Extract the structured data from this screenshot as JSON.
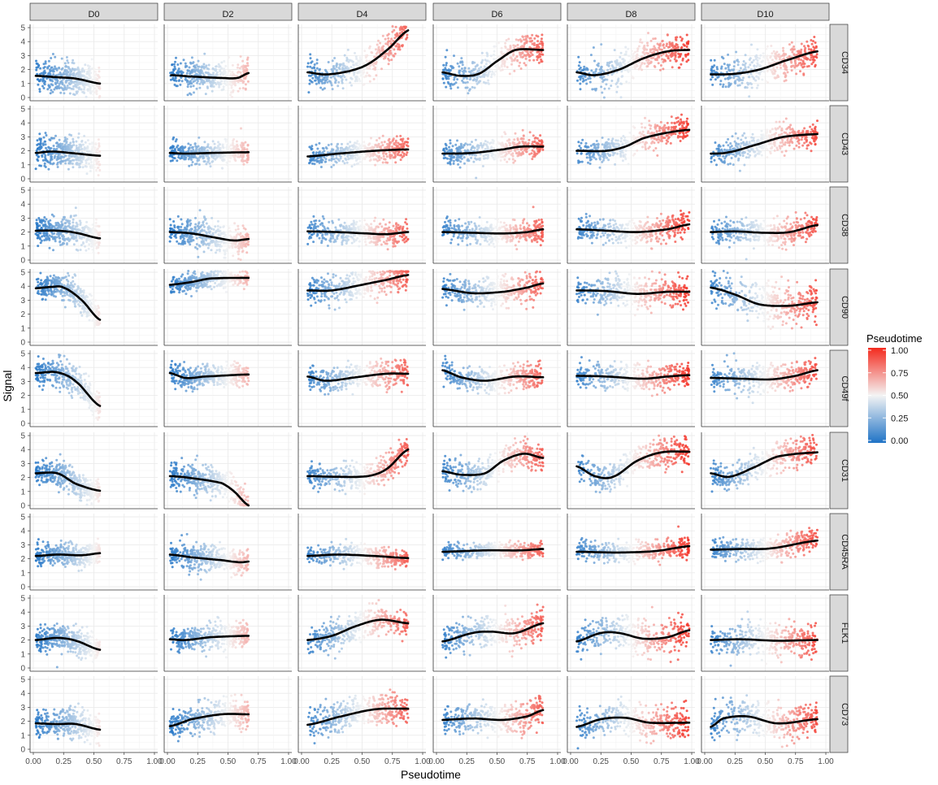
{
  "chart_data": {
    "type": "scatter",
    "facet_columns": [
      "D0",
      "D2",
      "D4",
      "D6",
      "D8",
      "D10"
    ],
    "facet_rows": [
      "CD34",
      "CD43",
      "CD38",
      "CD90",
      "CD49f",
      "CD31",
      "CD45RA",
      "FLK1",
      "CD73"
    ],
    "xlabel": "Pseudotime",
    "ylabel": "Signal",
    "xlim": [
      0,
      1
    ],
    "ylim": [
      0,
      5
    ],
    "x_ticks": [
      "0.00",
      "0.25",
      "0.50",
      "0.75",
      "1.00"
    ],
    "y_ticks": [
      "0",
      "1",
      "2",
      "3",
      "4",
      "5"
    ],
    "legend": {
      "title": "Pseudotime",
      "position": "right",
      "ticks": [
        "0.00",
        "0.25",
        "0.50",
        "0.75",
        "1.00"
      ],
      "low_color": "#1f73c6",
      "mid_color": "#f4f4f4",
      "high_color": "#f42a1e"
    },
    "panel_background": "#ffffff",
    "grid": true,
    "pseudotime_range_by_day": {
      "D0": [
        0.02,
        0.55
      ],
      "D2": [
        0.02,
        0.67
      ],
      "D4": [
        0.05,
        0.88
      ],
      "D6": [
        0.05,
        0.88
      ],
      "D8": [
        0.05,
        0.98
      ],
      "D10": [
        0.05,
        0.93
      ]
    },
    "trend_series": {
      "CD34": {
        "D0": [
          [
            0.02,
            1.55
          ],
          [
            0.2,
            1.45
          ],
          [
            0.35,
            1.35
          ],
          [
            0.55,
            1.0
          ]
        ],
        "D2": [
          [
            0.03,
            1.6
          ],
          [
            0.2,
            1.5
          ],
          [
            0.45,
            1.4
          ],
          [
            0.58,
            1.4
          ],
          [
            0.67,
            1.75
          ]
        ],
        "D4": [
          [
            0.05,
            1.8
          ],
          [
            0.2,
            1.65
          ],
          [
            0.4,
            1.9
          ],
          [
            0.55,
            2.4
          ],
          [
            0.72,
            3.5
          ],
          [
            0.88,
            4.8
          ]
        ],
        "D6": [
          [
            0.05,
            1.8
          ],
          [
            0.2,
            1.55
          ],
          [
            0.35,
            1.7
          ],
          [
            0.5,
            2.6
          ],
          [
            0.65,
            3.4
          ],
          [
            0.88,
            3.4
          ]
        ],
        "D8": [
          [
            0.05,
            1.8
          ],
          [
            0.2,
            1.6
          ],
          [
            0.4,
            2.0
          ],
          [
            0.6,
            2.8
          ],
          [
            0.8,
            3.3
          ],
          [
            0.98,
            3.4
          ]
        ],
        "D10": [
          [
            0.05,
            1.65
          ],
          [
            0.25,
            1.7
          ],
          [
            0.45,
            2.0
          ],
          [
            0.65,
            2.6
          ],
          [
            0.93,
            3.3
          ]
        ]
      },
      "CD43": {
        "D0": [
          [
            0.02,
            1.85
          ],
          [
            0.15,
            1.95
          ],
          [
            0.3,
            1.85
          ],
          [
            0.55,
            1.65
          ]
        ],
        "D2": [
          [
            0.02,
            1.85
          ],
          [
            0.15,
            1.8
          ],
          [
            0.35,
            1.85
          ],
          [
            0.67,
            1.9
          ]
        ],
        "D4": [
          [
            0.05,
            1.6
          ],
          [
            0.3,
            1.8
          ],
          [
            0.6,
            2.0
          ],
          [
            0.88,
            2.1
          ]
        ],
        "D6": [
          [
            0.05,
            1.8
          ],
          [
            0.3,
            1.85
          ],
          [
            0.55,
            2.1
          ],
          [
            0.7,
            2.3
          ],
          [
            0.88,
            2.3
          ]
        ],
        "D8": [
          [
            0.05,
            2.0
          ],
          [
            0.3,
            2.0
          ],
          [
            0.45,
            2.3
          ],
          [
            0.6,
            2.9
          ],
          [
            0.8,
            3.3
          ],
          [
            0.98,
            3.5
          ]
        ],
        "D10": [
          [
            0.05,
            1.8
          ],
          [
            0.2,
            1.9
          ],
          [
            0.45,
            2.5
          ],
          [
            0.65,
            3.0
          ],
          [
            0.93,
            3.2
          ]
        ]
      },
      "CD38": {
        "D0": [
          [
            0.02,
            2.1
          ],
          [
            0.2,
            2.1
          ],
          [
            0.35,
            1.95
          ],
          [
            0.55,
            1.55
          ]
        ],
        "D2": [
          [
            0.02,
            2.0
          ],
          [
            0.2,
            1.9
          ],
          [
            0.4,
            1.6
          ],
          [
            0.55,
            1.4
          ],
          [
            0.67,
            1.5
          ]
        ],
        "D4": [
          [
            0.05,
            2.05
          ],
          [
            0.3,
            2.0
          ],
          [
            0.55,
            1.9
          ],
          [
            0.7,
            1.85
          ],
          [
            0.88,
            2.0
          ]
        ],
        "D6": [
          [
            0.05,
            2.0
          ],
          [
            0.3,
            1.95
          ],
          [
            0.55,
            1.9
          ],
          [
            0.75,
            2.0
          ],
          [
            0.88,
            2.2
          ]
        ],
        "D8": [
          [
            0.05,
            2.2
          ],
          [
            0.3,
            2.1
          ],
          [
            0.55,
            2.0
          ],
          [
            0.8,
            2.2
          ],
          [
            0.98,
            2.55
          ]
        ],
        "D10": [
          [
            0.05,
            2.0
          ],
          [
            0.25,
            2.05
          ],
          [
            0.5,
            1.95
          ],
          [
            0.7,
            2.0
          ],
          [
            0.93,
            2.5
          ]
        ]
      },
      "CD90": {
        "D0": [
          [
            0.02,
            3.85
          ],
          [
            0.15,
            3.95
          ],
          [
            0.25,
            3.9
          ],
          [
            0.4,
            3.0
          ],
          [
            0.55,
            1.6
          ]
        ],
        "D2": [
          [
            0.02,
            4.1
          ],
          [
            0.2,
            4.3
          ],
          [
            0.35,
            4.55
          ],
          [
            0.67,
            4.6
          ]
        ],
        "D4": [
          [
            0.05,
            3.7
          ],
          [
            0.25,
            3.7
          ],
          [
            0.5,
            4.1
          ],
          [
            0.7,
            4.45
          ],
          [
            0.88,
            4.8
          ]
        ],
        "D6": [
          [
            0.05,
            3.8
          ],
          [
            0.3,
            3.5
          ],
          [
            0.55,
            3.6
          ],
          [
            0.75,
            3.9
          ],
          [
            0.88,
            4.2
          ]
        ],
        "D8": [
          [
            0.05,
            3.7
          ],
          [
            0.3,
            3.65
          ],
          [
            0.55,
            3.45
          ],
          [
            0.8,
            3.6
          ],
          [
            0.98,
            3.6
          ]
        ],
        "D10": [
          [
            0.05,
            3.9
          ],
          [
            0.25,
            3.4
          ],
          [
            0.45,
            2.7
          ],
          [
            0.7,
            2.6
          ],
          [
            0.93,
            2.85
          ]
        ]
      },
      "CD49f": {
        "D0": [
          [
            0.02,
            3.6
          ],
          [
            0.2,
            3.65
          ],
          [
            0.35,
            3.0
          ],
          [
            0.55,
            1.25
          ]
        ],
        "D2": [
          [
            0.02,
            3.6
          ],
          [
            0.15,
            3.25
          ],
          [
            0.3,
            3.35
          ],
          [
            0.67,
            3.5
          ]
        ],
        "D4": [
          [
            0.05,
            3.35
          ],
          [
            0.2,
            3.05
          ],
          [
            0.45,
            3.3
          ],
          [
            0.7,
            3.55
          ],
          [
            0.88,
            3.55
          ]
        ],
        "D6": [
          [
            0.05,
            3.8
          ],
          [
            0.2,
            3.3
          ],
          [
            0.4,
            3.05
          ],
          [
            0.65,
            3.35
          ],
          [
            0.88,
            3.3
          ]
        ],
        "D8": [
          [
            0.05,
            3.4
          ],
          [
            0.3,
            3.35
          ],
          [
            0.6,
            3.2
          ],
          [
            0.8,
            3.35
          ],
          [
            0.98,
            3.45
          ]
        ],
        "D10": [
          [
            0.05,
            3.25
          ],
          [
            0.3,
            3.2
          ],
          [
            0.55,
            3.15
          ],
          [
            0.75,
            3.4
          ],
          [
            0.93,
            3.8
          ]
        ]
      },
      "CD31": {
        "D0": [
          [
            0.02,
            2.3
          ],
          [
            0.2,
            2.3
          ],
          [
            0.35,
            1.55
          ],
          [
            0.55,
            1.05
          ]
        ],
        "D2": [
          [
            0.02,
            2.1
          ],
          [
            0.2,
            1.95
          ],
          [
            0.45,
            1.6
          ],
          [
            0.55,
            1.0
          ],
          [
            0.67,
            0.0
          ]
        ],
        "D4": [
          [
            0.05,
            2.1
          ],
          [
            0.3,
            2.05
          ],
          [
            0.55,
            2.1
          ],
          [
            0.7,
            2.6
          ],
          [
            0.88,
            4.0
          ]
        ],
        "D6": [
          [
            0.05,
            2.45
          ],
          [
            0.2,
            2.2
          ],
          [
            0.4,
            2.3
          ],
          [
            0.55,
            3.2
          ],
          [
            0.72,
            3.7
          ],
          [
            0.88,
            3.4
          ]
        ],
        "D8": [
          [
            0.05,
            2.8
          ],
          [
            0.2,
            2.1
          ],
          [
            0.35,
            2.05
          ],
          [
            0.55,
            3.2
          ],
          [
            0.75,
            3.8
          ],
          [
            0.98,
            3.85
          ]
        ],
        "D10": [
          [
            0.05,
            2.3
          ],
          [
            0.2,
            2.05
          ],
          [
            0.4,
            2.7
          ],
          [
            0.6,
            3.5
          ],
          [
            0.93,
            3.8
          ]
        ]
      },
      "CD45RA": {
        "D0": [
          [
            0.02,
            2.2
          ],
          [
            0.2,
            2.3
          ],
          [
            0.4,
            2.25
          ],
          [
            0.55,
            2.4
          ]
        ],
        "D2": [
          [
            0.02,
            2.3
          ],
          [
            0.2,
            2.1
          ],
          [
            0.45,
            1.9
          ],
          [
            0.6,
            1.75
          ],
          [
            0.67,
            1.8
          ]
        ],
        "D4": [
          [
            0.05,
            2.2
          ],
          [
            0.3,
            2.3
          ],
          [
            0.6,
            2.2
          ],
          [
            0.88,
            2.05
          ]
        ],
        "D6": [
          [
            0.05,
            2.5
          ],
          [
            0.4,
            2.6
          ],
          [
            0.7,
            2.6
          ],
          [
            0.88,
            2.7
          ]
        ],
        "D8": [
          [
            0.05,
            2.5
          ],
          [
            0.4,
            2.45
          ],
          [
            0.7,
            2.55
          ],
          [
            0.98,
            2.9
          ]
        ],
        "D10": [
          [
            0.05,
            2.65
          ],
          [
            0.3,
            2.7
          ],
          [
            0.55,
            2.75
          ],
          [
            0.93,
            3.3
          ]
        ]
      },
      "FLK1": {
        "D0": [
          [
            0.02,
            2.0
          ],
          [
            0.2,
            2.15
          ],
          [
            0.35,
            1.95
          ],
          [
            0.55,
            1.3
          ]
        ],
        "D2": [
          [
            0.02,
            2.05
          ],
          [
            0.15,
            2.0
          ],
          [
            0.35,
            2.2
          ],
          [
            0.67,
            2.3
          ]
        ],
        "D4": [
          [
            0.05,
            2.0
          ],
          [
            0.25,
            2.3
          ],
          [
            0.45,
            3.0
          ],
          [
            0.65,
            3.45
          ],
          [
            0.88,
            3.2
          ]
        ],
        "D6": [
          [
            0.05,
            1.9
          ],
          [
            0.3,
            2.5
          ],
          [
            0.45,
            2.6
          ],
          [
            0.65,
            2.5
          ],
          [
            0.88,
            3.2
          ]
        ],
        "D8": [
          [
            0.05,
            1.9
          ],
          [
            0.25,
            2.5
          ],
          [
            0.4,
            2.5
          ],
          [
            0.6,
            2.1
          ],
          [
            0.8,
            2.2
          ],
          [
            0.98,
            2.7
          ]
        ],
        "D10": [
          [
            0.05,
            2.0
          ],
          [
            0.3,
            2.05
          ],
          [
            0.6,
            1.95
          ],
          [
            0.93,
            2.0
          ]
        ]
      },
      "CD73": {
        "D0": [
          [
            0.02,
            1.85
          ],
          [
            0.2,
            1.8
          ],
          [
            0.35,
            1.8
          ],
          [
            0.55,
            1.4
          ]
        ],
        "D2": [
          [
            0.02,
            1.65
          ],
          [
            0.2,
            2.15
          ],
          [
            0.45,
            2.5
          ],
          [
            0.67,
            2.5
          ]
        ],
        "D4": [
          [
            0.05,
            1.75
          ],
          [
            0.3,
            2.3
          ],
          [
            0.6,
            2.85
          ],
          [
            0.88,
            2.9
          ]
        ],
        "D6": [
          [
            0.05,
            2.1
          ],
          [
            0.3,
            2.2
          ],
          [
            0.55,
            2.1
          ],
          [
            0.75,
            2.35
          ],
          [
            0.88,
            2.8
          ]
        ],
        "D8": [
          [
            0.05,
            1.6
          ],
          [
            0.25,
            2.15
          ],
          [
            0.45,
            2.25
          ],
          [
            0.65,
            1.9
          ],
          [
            0.98,
            1.9
          ]
        ],
        "D10": [
          [
            0.05,
            1.6
          ],
          [
            0.15,
            2.2
          ],
          [
            0.35,
            2.35
          ],
          [
            0.6,
            1.85
          ],
          [
            0.93,
            2.15
          ]
        ]
      }
    },
    "scatter_spread": {
      "CD34": [
        0.55,
        0.5,
        0.55,
        0.55,
        0.6,
        0.6
      ],
      "CD43": [
        0.5,
        0.4,
        0.4,
        0.4,
        0.45,
        0.45
      ],
      "CD38": [
        0.5,
        0.55,
        0.4,
        0.4,
        0.45,
        0.45
      ],
      "CD90": [
        0.45,
        0.3,
        0.5,
        0.5,
        0.55,
        0.7
      ],
      "CD49f": [
        0.5,
        0.4,
        0.45,
        0.45,
        0.45,
        0.5
      ],
      "CD31": [
        0.45,
        0.5,
        0.45,
        0.5,
        0.5,
        0.5
      ],
      "CD45RA": [
        0.4,
        0.45,
        0.35,
        0.25,
        0.35,
        0.4
      ],
      "FLK1": [
        0.45,
        0.45,
        0.5,
        0.55,
        0.6,
        0.6
      ],
      "CD73": [
        0.5,
        0.5,
        0.55,
        0.5,
        0.6,
        0.6
      ]
    }
  }
}
